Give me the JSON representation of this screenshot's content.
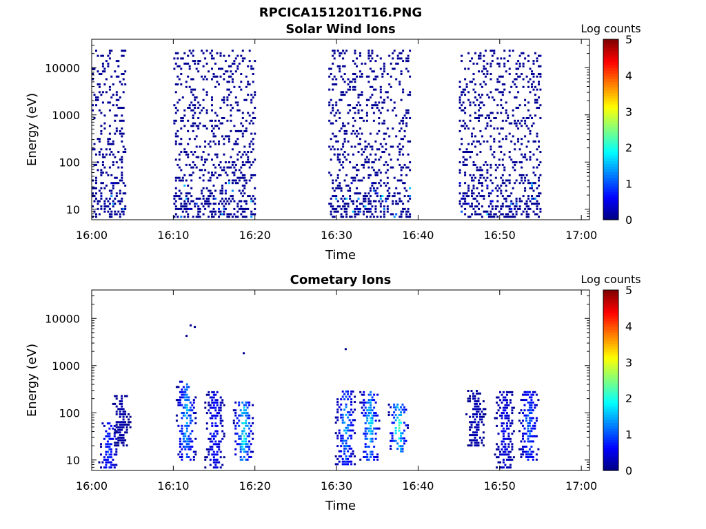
{
  "figure": {
    "suptitle": "RPCICA151201T16.PNG"
  },
  "colormap": {
    "name": "jet",
    "min": 0,
    "max": 5,
    "label": "Log counts",
    "ticks": [
      "0",
      "1",
      "2",
      "3",
      "4",
      "5"
    ]
  },
  "chart_data": [
    {
      "type": "heatmap",
      "title": "Solar Wind Ions",
      "xlabel": "Time",
      "ylabel": "Energy (eV)",
      "y_scale": "log",
      "ylim": [
        6,
        40000
      ],
      "xlim": [
        "16:00",
        "17:01"
      ],
      "x_ticks": [
        "16:00",
        "16:10",
        "16:20",
        "16:30",
        "16:40",
        "16:50",
        "17:00"
      ],
      "y_ticks": [
        "10",
        "100",
        "1000",
        "10000"
      ],
      "colorbar_label": "Log counts",
      "active_intervals": [
        {
          "start": "16:00",
          "end": "16:04"
        },
        {
          "start": "16:10",
          "end": "16:20"
        },
        {
          "start": "16:29",
          "end": "16:39"
        },
        {
          "start": "16:45",
          "end": "16:55"
        }
      ],
      "energy_range_eV": [
        6,
        25000
      ],
      "typical_log_counts": 0.1,
      "peak_log_counts": 1.8,
      "notes": "Sparse single-count events spread over 10 eV to ~20 keV during active intervals; slightly higher counts near 10-40 eV."
    },
    {
      "type": "heatmap",
      "title": "Cometary Ions",
      "xlabel": "Time",
      "ylabel": "Energy (eV)",
      "y_scale": "log",
      "ylim": [
        6,
        40000
      ],
      "xlim": [
        "16:00",
        "17:01"
      ],
      "x_ticks": [
        "16:00",
        "16:10",
        "16:20",
        "16:30",
        "16:40",
        "16:50",
        "17:00"
      ],
      "y_ticks": [
        "10",
        "100",
        "1000",
        "10000"
      ],
      "colorbar_label": "Log counts",
      "bursts": [
        {
          "time": "16:02",
          "emin": 6,
          "emax": 60,
          "peak": 1.2
        },
        {
          "time": "16:03.5",
          "emin": 20,
          "emax": 250,
          "peak": 0.3
        },
        {
          "time": "16:11.5",
          "emin": 10,
          "emax": 450,
          "peak": 2.0
        },
        {
          "time": "16:15",
          "emin": 6,
          "emax": 300,
          "peak": 1.0
        },
        {
          "time": "16:18.5",
          "emin": 10,
          "emax": 180,
          "peak": 2.4
        },
        {
          "time": "16:31",
          "emin": 8,
          "emax": 300,
          "peak": 1.8
        },
        {
          "time": "16:34",
          "emin": 10,
          "emax": 300,
          "peak": 2.2
        },
        {
          "time": "16:37.5",
          "emin": 15,
          "emax": 150,
          "peak": 2.6
        },
        {
          "time": "16:47",
          "emin": 20,
          "emax": 300,
          "peak": 0.4
        },
        {
          "time": "16:50.5",
          "emin": 6,
          "emax": 300,
          "peak": 0.8
        },
        {
          "time": "16:53.5",
          "emin": 10,
          "emax": 300,
          "peak": 1.5
        }
      ],
      "isolated_points": [
        {
          "time": "16:11.5",
          "energy": 4200
        },
        {
          "time": "16:12",
          "energy": 7000
        },
        {
          "time": "16:12.5",
          "energy": 6500
        },
        {
          "time": "16:18.5",
          "energy": 1800
        },
        {
          "time": "16:31",
          "energy": 2200
        }
      ]
    }
  ]
}
